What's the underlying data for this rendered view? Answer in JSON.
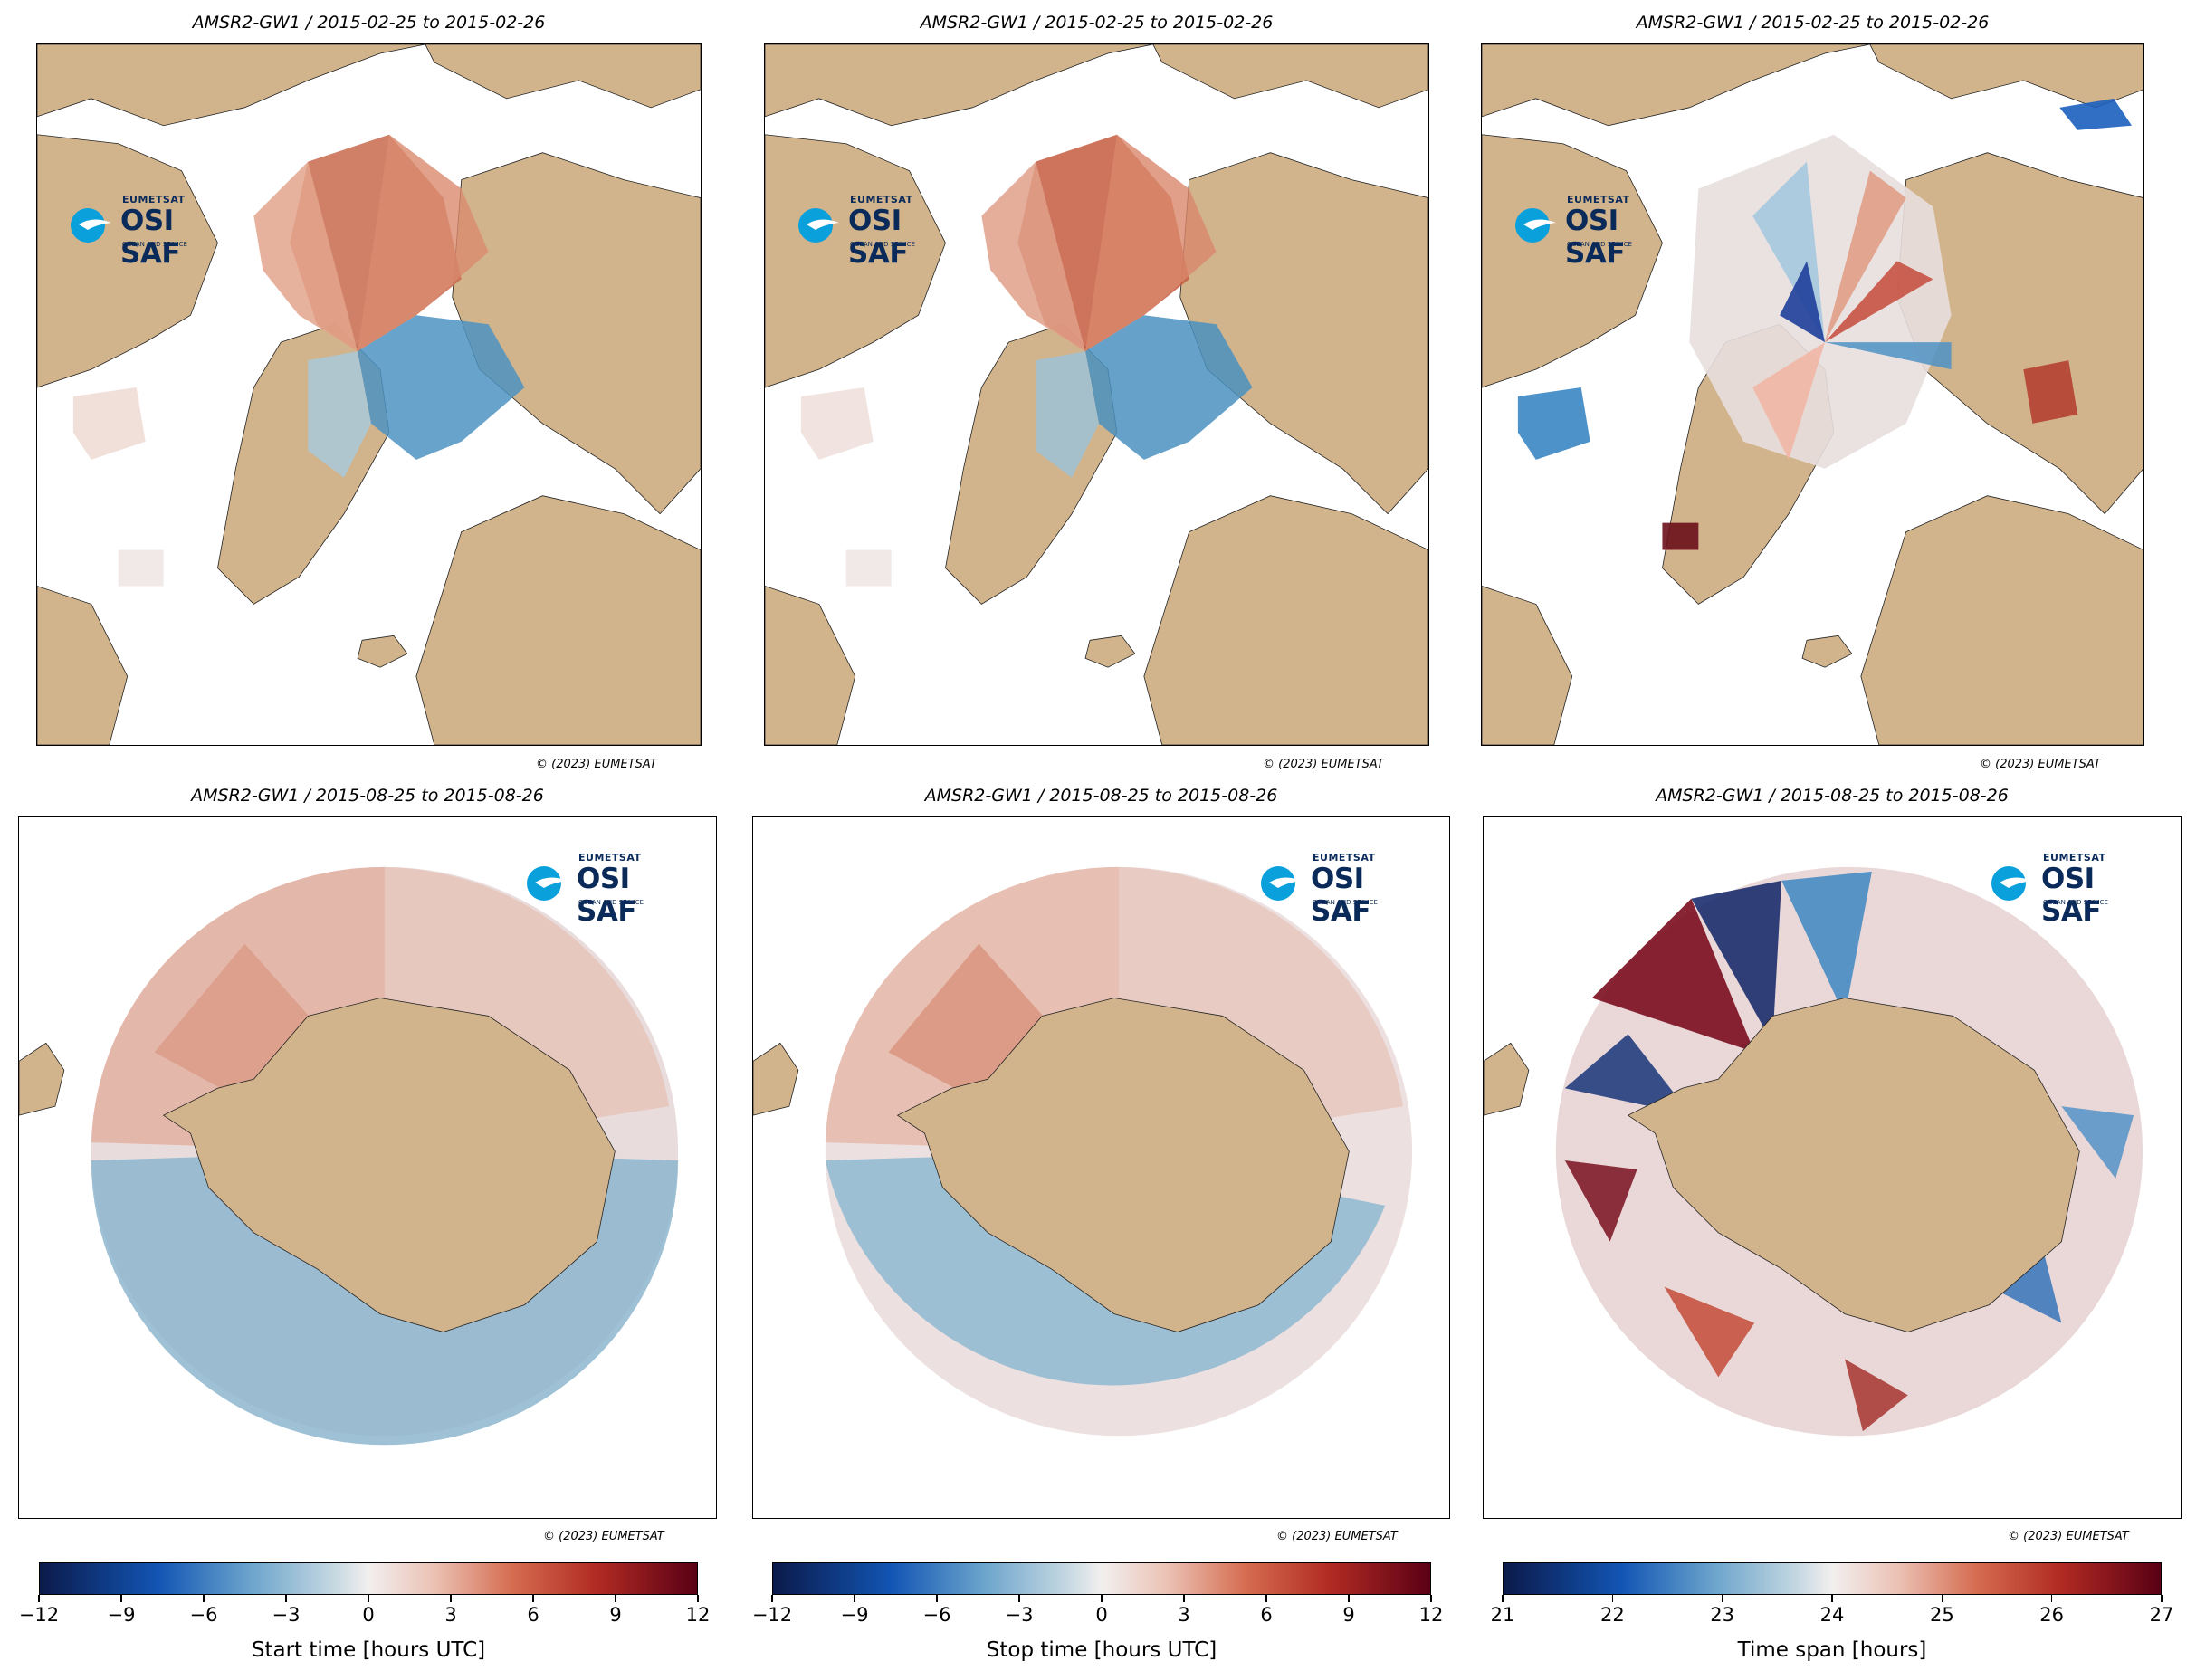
{
  "panels": [
    {
      "id": "north-start",
      "title": "AMSR2-GW1 / 2015-02-25 to 2015-02-26",
      "copyright": "© (2023) EUMETSAT"
    },
    {
      "id": "north-stop",
      "title": "AMSR2-GW1 / 2015-02-25 to 2015-02-26",
      "copyright": "© (2023) EUMETSAT"
    },
    {
      "id": "north-span",
      "title": "AMSR2-GW1 / 2015-02-25 to 2015-02-26",
      "copyright": "© (2023) EUMETSAT"
    },
    {
      "id": "south-start",
      "title": "AMSR2-GW1 / 2015-08-25 to 2015-08-26",
      "copyright": "© (2023) EUMETSAT"
    },
    {
      "id": "south-stop",
      "title": "AMSR2-GW1 / 2015-08-25 to 2015-08-26",
      "copyright": "© (2023) EUMETSAT"
    },
    {
      "id": "south-span",
      "title": "AMSR2-GW1 / 2015-08-25 to 2015-08-26",
      "copyright": "© (2023) EUMETSAT"
    }
  ],
  "logo": {
    "brand": "EUMETSAT",
    "name": "OSI SAF",
    "tagline": "OCEAN AND SEA ICE"
  },
  "colorbars": [
    {
      "label": "Start time [hours UTC]",
      "ticks": [
        "−12",
        "−9",
        "−6",
        "−3",
        "0",
        "3",
        "6",
        "9",
        "12"
      ]
    },
    {
      "label": "Stop time [hours UTC]",
      "ticks": [
        "−12",
        "−9",
        "−6",
        "−3",
        "0",
        "3",
        "6",
        "9",
        "12"
      ]
    },
    {
      "label": "Time span [hours]",
      "ticks": [
        "21",
        "22",
        "23",
        "24",
        "25",
        "26",
        "27"
      ]
    }
  ],
  "colors": {
    "land": "#d2b48c",
    "ocean": "#ffffff",
    "low": "#0b1a4a",
    "mid": "#f2efef",
    "high": "#5a0015"
  }
}
